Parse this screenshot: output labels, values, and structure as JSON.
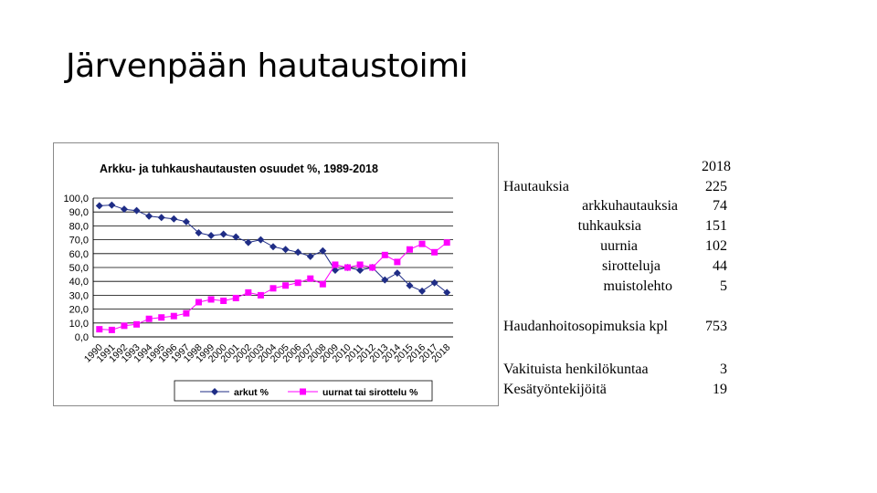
{
  "slide": {
    "title": "Järvenpään hautaustoimi"
  },
  "chart_data": {
    "type": "line",
    "title": "Arkku- ja tuhkaushautausten osuudet %, 1989-2018",
    "categories": [
      "1990",
      "1991",
      "1992",
      "1993",
      "1994",
      "1995",
      "1996",
      "1997",
      "1998",
      "1999",
      "2000",
      "2001",
      "2002",
      "2003",
      "2004",
      "2005",
      "2006",
      "2007",
      "2008",
      "2009",
      "2010",
      "2011",
      "2012",
      "2013",
      "2014",
      "2015",
      "2016",
      "2017",
      "2018"
    ],
    "ylim": [
      0,
      100
    ],
    "yticks": [
      "0,0",
      "10,0",
      "20,0",
      "30,0",
      "40,0",
      "50,0",
      "60,0",
      "70,0",
      "80,0",
      "90,0",
      "100,0"
    ],
    "grid": true,
    "legend_position": "bottom",
    "series": [
      {
        "name": "arkut %",
        "color": "#1f2d86",
        "marker": "diamond",
        "values": [
          94.5,
          95,
          92,
          91,
          87,
          86,
          85,
          83,
          75,
          73,
          74,
          72,
          68,
          70,
          65,
          63,
          61,
          58,
          62,
          48,
          50,
          48,
          50,
          41,
          46,
          37,
          33,
          39,
          32
        ]
      },
      {
        "name": "uurnat tai sirottelu  %",
        "color": "#ff00ff",
        "marker": "square",
        "values": [
          5.5,
          5,
          8,
          9,
          13,
          14,
          15,
          17,
          25,
          27,
          26,
          28,
          32,
          30,
          35,
          37,
          39,
          42,
          38,
          52,
          50,
          52,
          50,
          59,
          54,
          63,
          67,
          61,
          68
        ]
      }
    ]
  },
  "stats": {
    "year": "2018",
    "rows": [
      {
        "label": "Hautauksia",
        "value": "225"
      },
      {
        "label": "arkkuhautauksia",
        "value": "74"
      },
      {
        "label": "tuhkauksia",
        "value": "151"
      },
      {
        "label": "uurnia",
        "value": "102"
      },
      {
        "label": "sirotteluja",
        "value": "44"
      },
      {
        "label": "muistolehto",
        "value": "5"
      }
    ],
    "contracts": {
      "label": "Haudanhoitosopimuksia kpl",
      "value": "753"
    },
    "staff": [
      {
        "label": "Vakituista henkilökuntaa",
        "value": "3"
      },
      {
        "label": "Kesätyöntekijöitä",
        "value": "19"
      }
    ]
  }
}
